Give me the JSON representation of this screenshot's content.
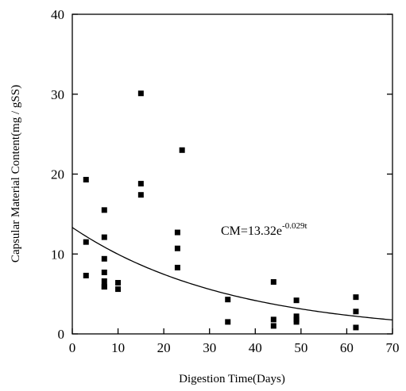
{
  "chart_data": {
    "type": "scatter",
    "title": "",
    "xlabel": "Digestion Time(Days)",
    "ylabel": "Capsular Material Content(mg / gSS)",
    "xlim": [
      0,
      70
    ],
    "ylim": [
      0,
      40
    ],
    "xticks": [
      0,
      10,
      20,
      30,
      40,
      50,
      60,
      70
    ],
    "yticks": [
      0,
      10,
      20,
      30,
      40
    ],
    "grid": false,
    "marker_color": "#000000",
    "series": [
      {
        "x": [
          3,
          3,
          3,
          7,
          7,
          7,
          7,
          7,
          7,
          7,
          10,
          10,
          15,
          15,
          15,
          23,
          23,
          23,
          24,
          34,
          34,
          44,
          44,
          44,
          49,
          49,
          49,
          49,
          62,
          62,
          62
        ],
        "y": [
          19.3,
          11.5,
          7.3,
          15.5,
          12.1,
          9.4,
          7.7,
          6.6,
          5.9,
          5.9,
          6.4,
          5.6,
          30.1,
          18.8,
          17.4,
          12.7,
          10.7,
          8.3,
          23.0,
          4.3,
          1.5,
          6.5,
          1.8,
          1.0,
          4.2,
          2.2,
          1.8,
          1.5,
          4.6,
          2.8,
          0.8
        ]
      }
    ],
    "fit": {
      "equation_base": "CM=13.32e",
      "equation_exponent": "-0.029t",
      "a": 13.32,
      "k": -0.029
    }
  }
}
